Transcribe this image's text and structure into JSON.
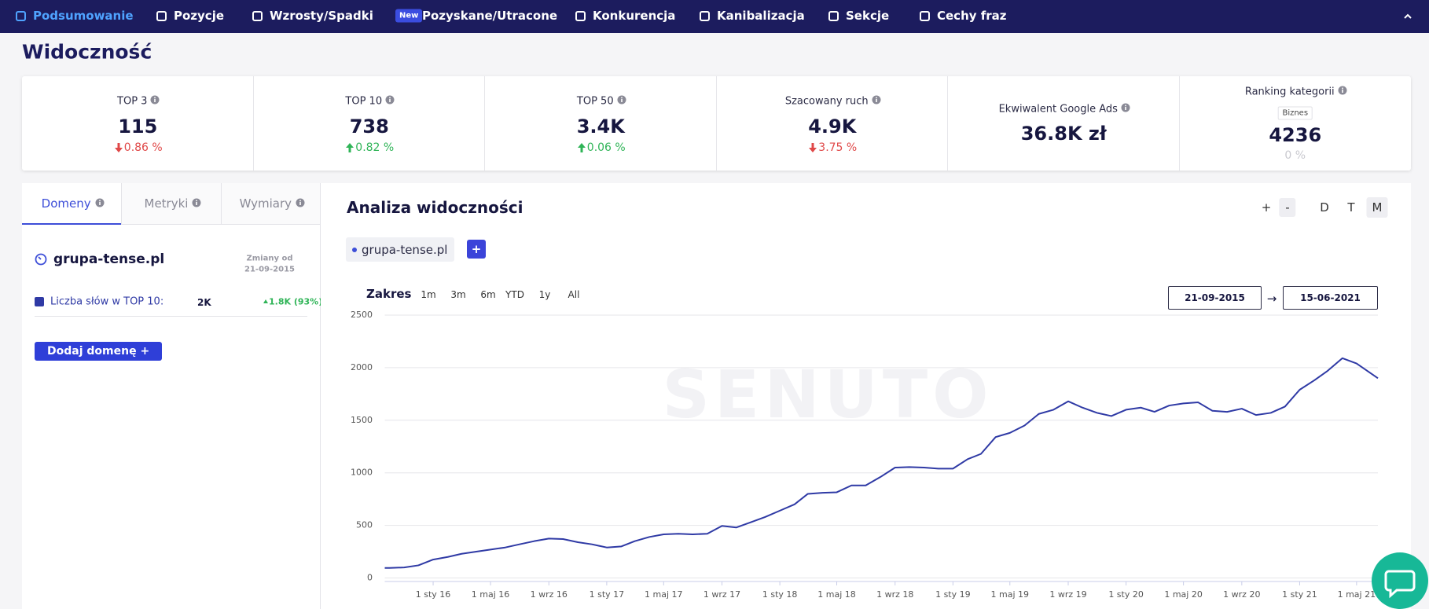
{
  "nav": {
    "items": [
      "Podsumowanie",
      "Pozycje",
      "Wzrosty/Spadki",
      "Pozyskane/Utracone",
      "Konkurencja",
      "Kanibalizacja",
      "Sekcje",
      "Cechy fraz"
    ],
    "badge": "New",
    "active": 0
  },
  "header": {
    "title": "Widoczność"
  },
  "stats": [
    {
      "label": "TOP 3",
      "value": "115",
      "change": "0.86 %",
      "direction": "down"
    },
    {
      "label": "TOP 10",
      "value": "738",
      "change": "0.82 %",
      "direction": "up"
    },
    {
      "label": "TOP 50",
      "value": "3.4K",
      "change": "0.06 %",
      "direction": "up"
    },
    {
      "label": "Szacowany ruch",
      "value": "4.9K",
      "change": "3.75 %",
      "direction": "down"
    },
    {
      "label": "Ekwiwalent Google Ads",
      "value": "36.8K zł"
    },
    {
      "label": "Ranking kategorii",
      "tag": "Biznes",
      "value": "4236",
      "change": "0 %",
      "direction": "none"
    }
  ],
  "left_panel": {
    "tabs": [
      "Domeny",
      "Metryki",
      "Wymiary"
    ],
    "active_tab": 0,
    "domain": "grupa-tense.pl",
    "changes_label": "Zmiany od",
    "changes_date": "21-09-2015",
    "metric": {
      "label": "Liczba słów w TOP 10:",
      "value": "2K",
      "change": "1.8K (93%)"
    },
    "button": "Dodaj domenę +"
  },
  "chart_panel": {
    "title": "Analiza widoczności",
    "zoom": [
      "+",
      "-"
    ],
    "granularity": [
      "D",
      "T",
      "M"
    ],
    "active_granularity": 2,
    "chip": "grupa-tense.pl",
    "add": "+",
    "range_label": "Zakres",
    "ranges": [
      "1m",
      "3m",
      "6m",
      "YTD",
      "1y",
      "All"
    ],
    "date_from": "21-09-2015",
    "arrow": "→",
    "date_to": "15-06-2021",
    "watermark": "SENUTO"
  },
  "chart_data": {
    "type": "line",
    "x": [
      "2015-09-21",
      "2015-10",
      "2015-11",
      "2015-12",
      "2016-01",
      "2016-02",
      "2016-03",
      "2016-04",
      "2016-05",
      "2016-06",
      "2016-07",
      "2016-08",
      "2016-09",
      "2016-10",
      "2016-11",
      "2016-12",
      "2017-01",
      "2017-02",
      "2017-03",
      "2017-04",
      "2017-05",
      "2017-06",
      "2017-07",
      "2017-08",
      "2017-09",
      "2017-10",
      "2017-11",
      "2017-12",
      "2018-01",
      "2018-02",
      "2018-03",
      "2018-04",
      "2018-05",
      "2018-06",
      "2018-07",
      "2018-08",
      "2018-09",
      "2018-10",
      "2018-11",
      "2018-12",
      "2019-01",
      "2019-02",
      "2019-03",
      "2019-04",
      "2019-05",
      "2019-06",
      "2019-07",
      "2019-08",
      "2019-09",
      "2019-10",
      "2019-11",
      "2019-12",
      "2020-01",
      "2020-02",
      "2020-03",
      "2020-04",
      "2020-05",
      "2020-06",
      "2020-07",
      "2020-08",
      "2020-09",
      "2020-10",
      "2020-11",
      "2020-12",
      "2021-01",
      "2021-02",
      "2021-03",
      "2021-04",
      "2021-05",
      "2021-06-15"
    ],
    "series": [
      {
        "name": "grupa-tense.pl",
        "color": "#2f3aa5",
        "values": [
          95,
          95,
          100,
          120,
          175,
          200,
          230,
          250,
          270,
          290,
          320,
          350,
          375,
          370,
          340,
          320,
          290,
          300,
          350,
          390,
          415,
          420,
          415,
          420,
          495,
          480,
          530,
          580,
          640,
          700,
          800,
          810,
          815,
          880,
          880,
          960,
          1050,
          1055,
          1050,
          1040,
          1040,
          1130,
          1180,
          1340,
          1380,
          1450,
          1560,
          1600,
          1680,
          1620,
          1570,
          1540,
          1600,
          1620,
          1580,
          1640,
          1660,
          1670,
          1590,
          1580,
          1610,
          1550,
          1570,
          1630,
          1790,
          1880,
          1970,
          2090,
          2040,
          1900
        ]
      }
    ],
    "xlim": [
      "2015-09-21",
      "2021-06-15"
    ],
    "xticks": [
      {
        "value": "2016-01-01",
        "label": "1 sty 16"
      },
      {
        "value": "2016-05-01",
        "label": "1 maj 16"
      },
      {
        "value": "2016-09-01",
        "label": "1 wrz 16"
      },
      {
        "value": "2017-01-01",
        "label": "1 sty 17"
      },
      {
        "value": "2017-05-01",
        "label": "1 maj 17"
      },
      {
        "value": "2017-09-01",
        "label": "1 wrz 17"
      },
      {
        "value": "2018-01-01",
        "label": "1 sty 18"
      },
      {
        "value": "2018-05-01",
        "label": "1 maj 18"
      },
      {
        "value": "2018-09-01",
        "label": "1 wrz 18"
      },
      {
        "value": "2019-01-01",
        "label": "1 sty 19"
      },
      {
        "value": "2019-05-01",
        "label": "1 maj 19"
      },
      {
        "value": "2019-09-01",
        "label": "1 wrz 19"
      },
      {
        "value": "2020-01-01",
        "label": "1 sty 20"
      },
      {
        "value": "2020-05-01",
        "label": "1 maj 20"
      },
      {
        "value": "2020-09-01",
        "label": "1 wrz 20"
      },
      {
        "value": "2021-01-01",
        "label": "1 sty 21"
      },
      {
        "value": "2021-05-01",
        "label": "1 maj 21"
      }
    ],
    "ylim": [
      0,
      2500
    ],
    "yticks": [
      0,
      500,
      1000,
      1500,
      2000,
      2500
    ],
    "grid": true
  }
}
